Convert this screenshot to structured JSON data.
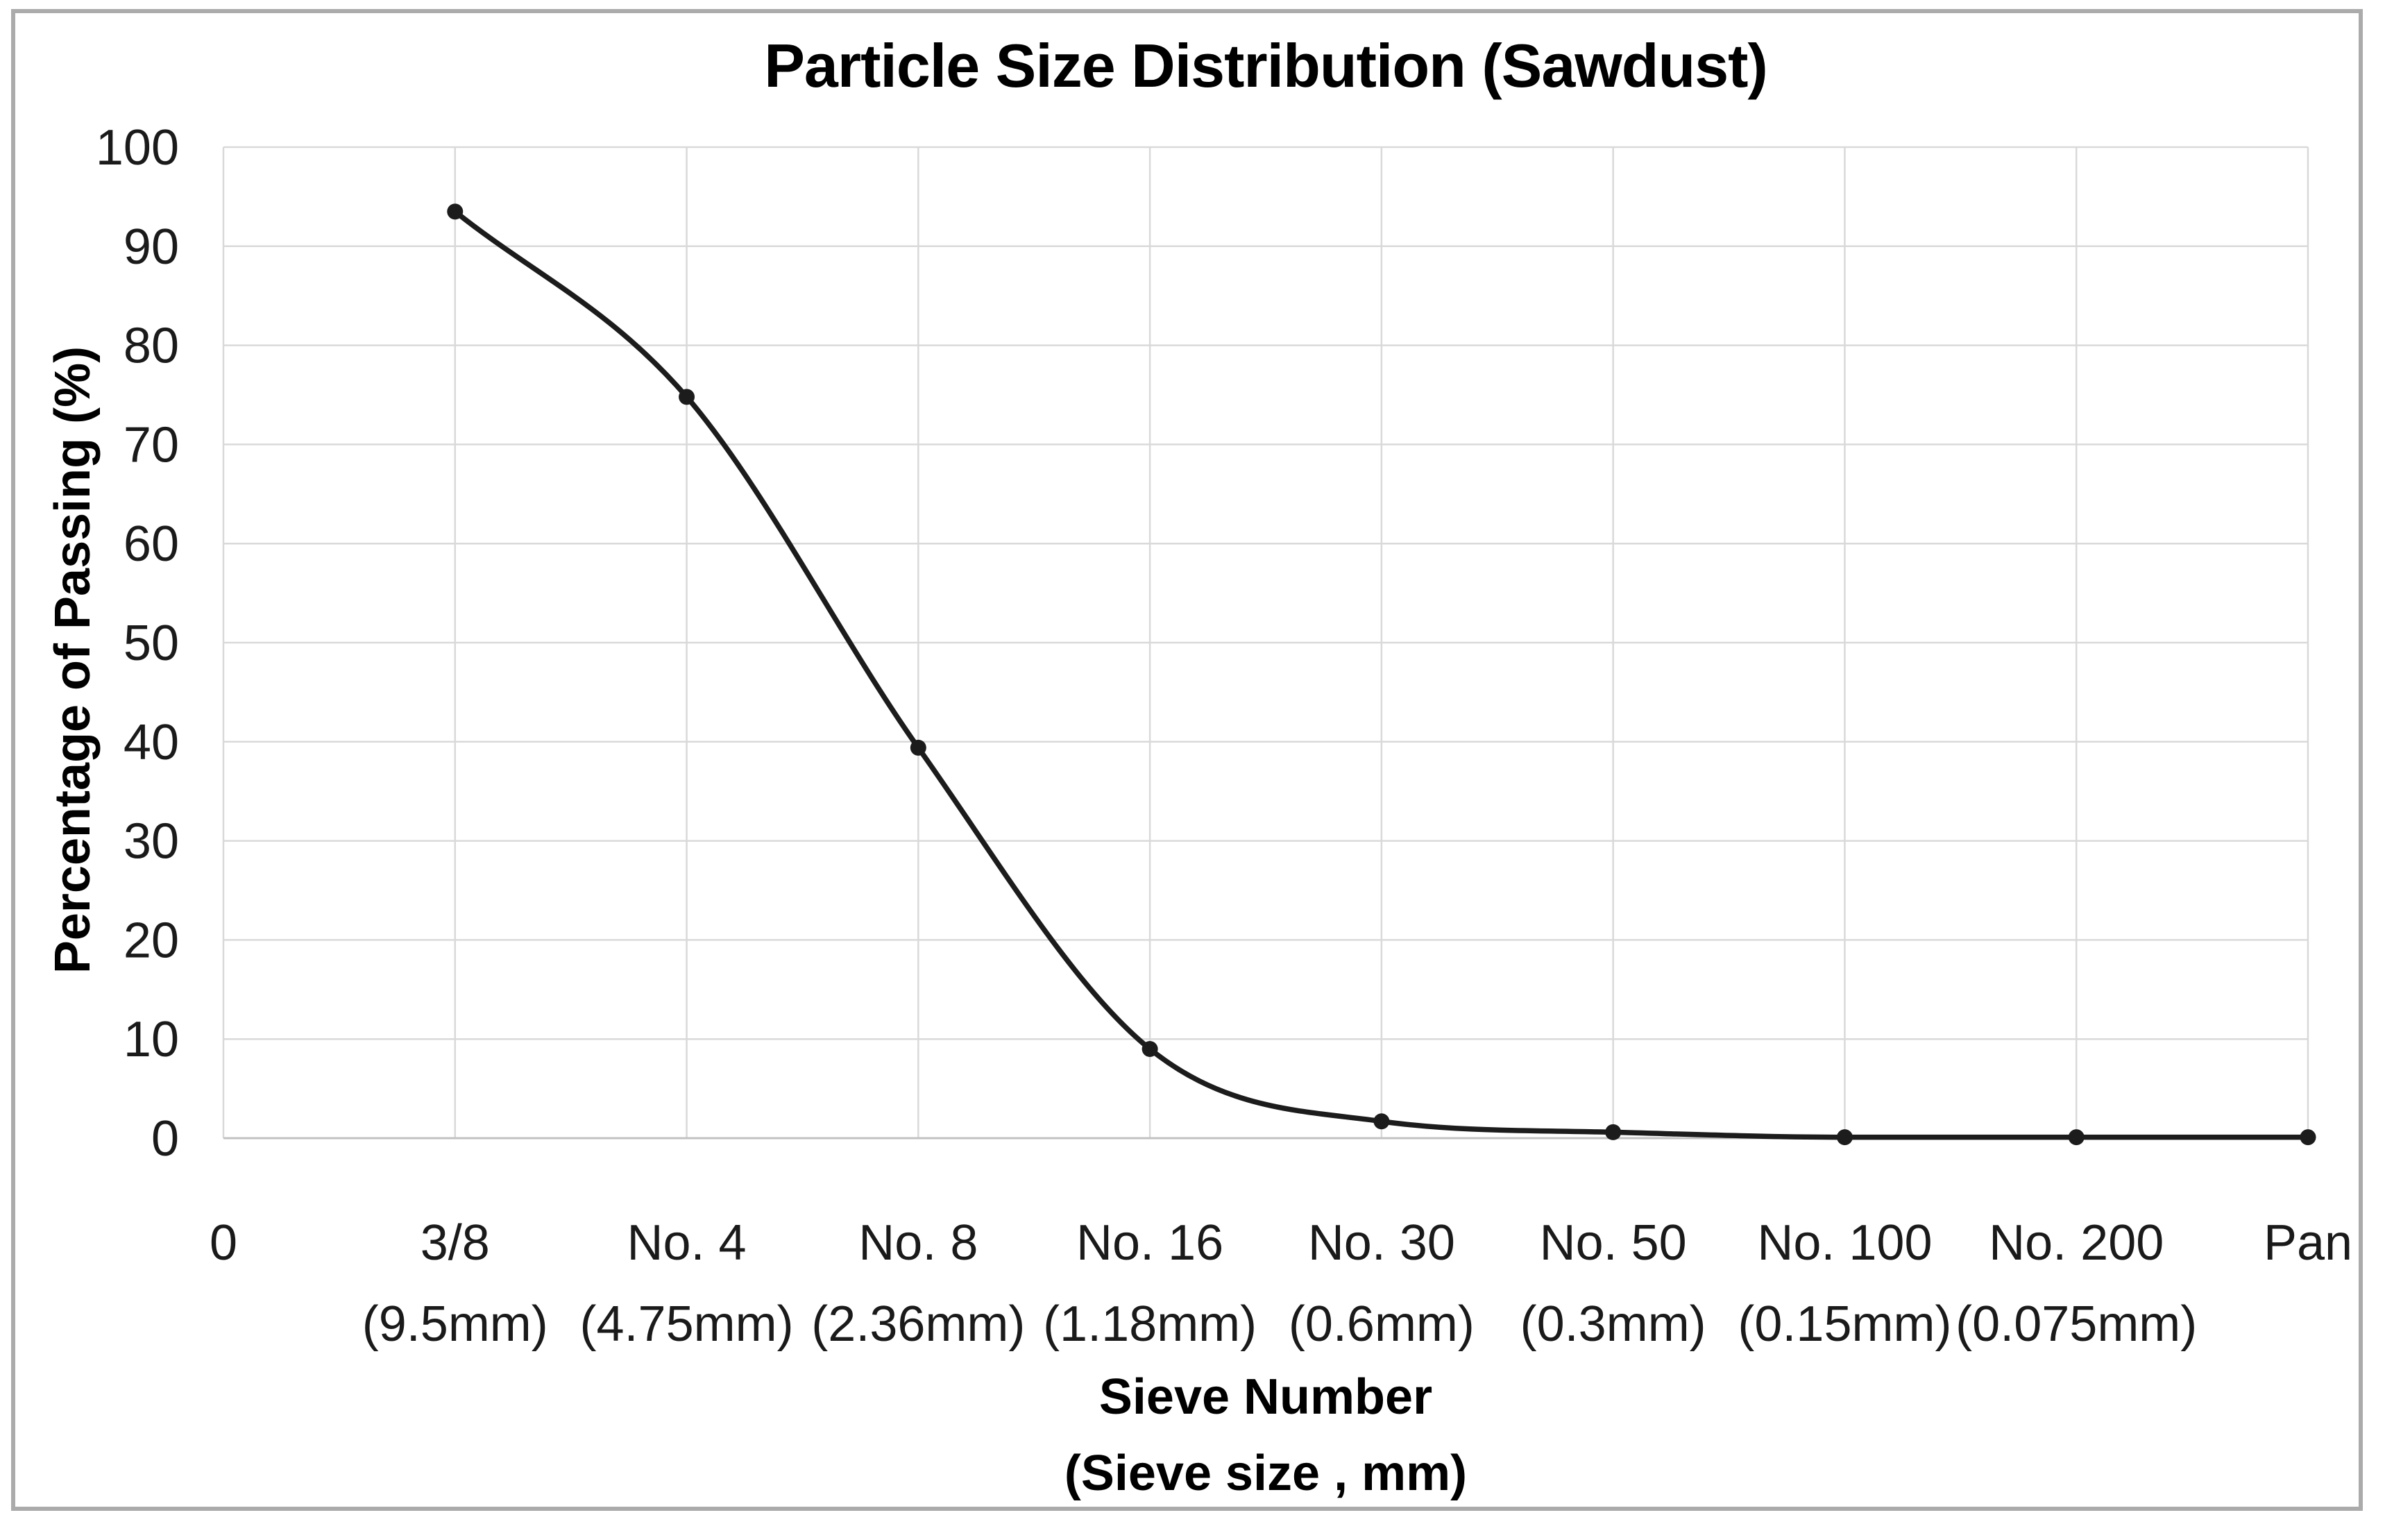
{
  "chart_data": {
    "type": "line",
    "title": "Particle Size Distribution (Sawdust)",
    "xlabel": "Sieve Number",
    "xlabel_line2": "(Sieve size , mm)",
    "ylabel": "Percentage of Passing (%)",
    "categories": [
      "0",
      "3/8",
      "No. 4",
      "No. 8",
      "No. 16",
      "No. 30",
      "No. 50",
      "No. 100",
      "No. 200",
      "Pan"
    ],
    "category_sublabels": [
      "",
      "(9.5mm)",
      "(4.75mm)",
      "(2.36mm)",
      "(1.18mm)",
      "(0.6mm)",
      "(0.3mm)",
      "(0.15mm)",
      "(0.075mm)",
      ""
    ],
    "series": [
      {
        "name": "Percentage of Passing",
        "values": [
          null,
          93.5,
          74.8,
          39.4,
          9.0,
          1.7,
          0.6,
          0.1,
          0.1,
          0.1
        ]
      }
    ],
    "ylim": [
      0,
      100
    ],
    "yticks": [
      0,
      10,
      20,
      30,
      40,
      50,
      60,
      70,
      80,
      90,
      100
    ],
    "grid": true,
    "legend": "none",
    "smooth": true,
    "marker": "circle"
  },
  "style": {
    "line_color": "#1c1c1c",
    "marker_color": "#1c1c1c",
    "grid_color": "#d9d9d9",
    "axis_color": "#c2c2c2",
    "text_color": "#1a1a1a",
    "title_color": "#000000",
    "frame_color": "#ababab",
    "background": "#ffffff"
  }
}
